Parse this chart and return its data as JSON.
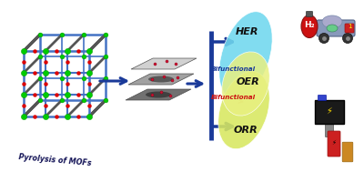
{
  "bg_color": "#ffffff",
  "mof_frame_color": "#4472c4",
  "mof_node_color": "#00cc00",
  "mof_linker_color": "#dd0000",
  "mof_bar_color": "#555555",
  "arrow_color": "#1a3a99",
  "her_color": "#70d8ee",
  "oer_color": "#e8f080",
  "orr_color": "#d8e860",
  "her_label": "HER",
  "oer_label": "OER",
  "orr_label": "ORR",
  "bifunctional1_label": "Bifunctional",
  "bifunctional1_color": "#1a3a99",
  "bifunctional2_label": "Bifunctional",
  "bifunctional2_color": "#cc1111",
  "pyrolysis_label": "Pyrolysis of MOFs",
  "pyrolysis_color": "#111155",
  "h2_label": "H₂",
  "h2_tank_color": "#cc2020",
  "sheet_colors": [
    "#c8c8c8",
    "#a0a0a0",
    "#787878"
  ],
  "nanoparticle_color": "#cc1133",
  "battery_color": "#222222",
  "red_battery_color": "#cc2020",
  "cross_color": "#1a3a99"
}
